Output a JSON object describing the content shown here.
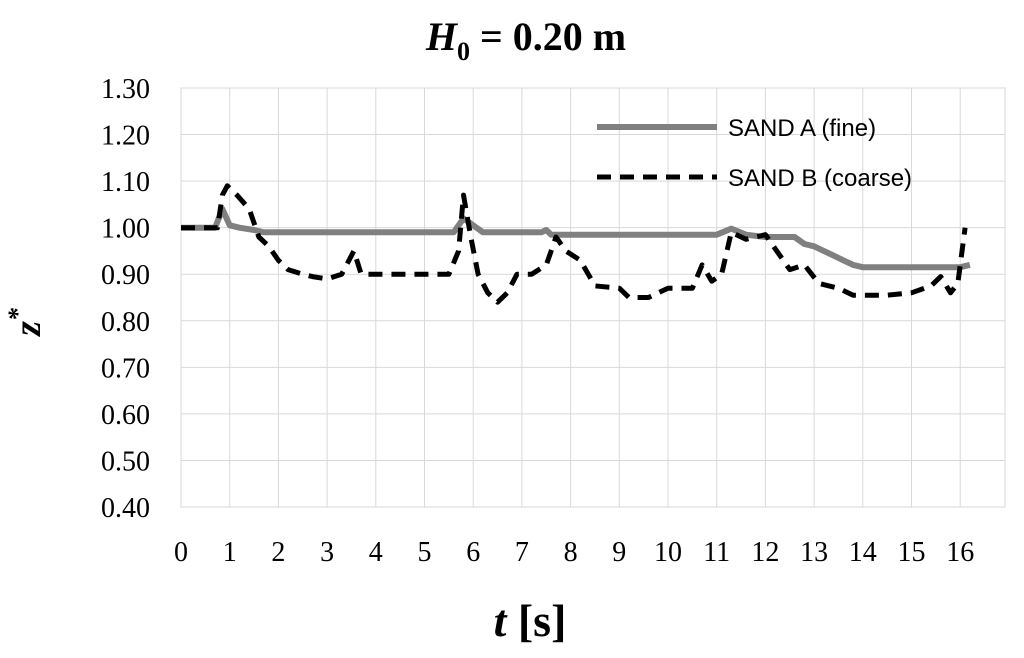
{
  "chart_data": {
    "type": "line",
    "title": {
      "main": "H",
      "sub": "0",
      "rest": " = 0.20 m"
    },
    "xlabel": {
      "symbol": "t",
      "unit": " [s]"
    },
    "ylabel": {
      "symbol": "z",
      "sup": "*"
    },
    "xlim": [
      0,
      16.5
    ],
    "ylim": [
      0.4,
      1.3
    ],
    "xticks": [
      "0",
      "1",
      "2",
      "3",
      "4",
      "5",
      "6",
      "7",
      "8",
      "9",
      "10",
      "11",
      "12",
      "13",
      "14",
      "15",
      "16"
    ],
    "yticks": [
      "0.40",
      "0.50",
      "0.60",
      "0.70",
      "0.80",
      "0.90",
      "1.00",
      "1.10",
      "1.20",
      "1.30"
    ],
    "grid": true,
    "legend_position": "top-right",
    "series": [
      {
        "name": "SAND A (fine)",
        "color": "#808080",
        "style": "solid",
        "points": [
          [
            0,
            1.0
          ],
          [
            0.7,
            1.0
          ],
          [
            0.85,
            1.04
          ],
          [
            1.0,
            1.005
          ],
          [
            1.2,
            1.0
          ],
          [
            1.5,
            0.995
          ],
          [
            1.7,
            0.99
          ],
          [
            2,
            0.99
          ],
          [
            3,
            0.99
          ],
          [
            4,
            0.99
          ],
          [
            5,
            0.99
          ],
          [
            5.6,
            0.99
          ],
          [
            5.8,
            1.02
          ],
          [
            6.0,
            1.005
          ],
          [
            6.2,
            0.99
          ],
          [
            6.5,
            0.99
          ],
          [
            7,
            0.99
          ],
          [
            7.4,
            0.99
          ],
          [
            7.5,
            0.995
          ],
          [
            7.6,
            0.985
          ],
          [
            8,
            0.985
          ],
          [
            9,
            0.985
          ],
          [
            10,
            0.985
          ],
          [
            11,
            0.985
          ],
          [
            11.3,
            0.998
          ],
          [
            11.6,
            0.985
          ],
          [
            12,
            0.98
          ],
          [
            12.6,
            0.98
          ],
          [
            12.8,
            0.965
          ],
          [
            13.0,
            0.96
          ],
          [
            13.2,
            0.95
          ],
          [
            13.4,
            0.94
          ],
          [
            13.6,
            0.93
          ],
          [
            13.8,
            0.92
          ],
          [
            14.0,
            0.915
          ],
          [
            15,
            0.915
          ],
          [
            16,
            0.915
          ],
          [
            16.2,
            0.92
          ]
        ]
      },
      {
        "name": "SAND B (coarse)",
        "color": "#000000",
        "style": "dashed",
        "points": [
          [
            0,
            1.0
          ],
          [
            0.75,
            1.0
          ],
          [
            0.85,
            1.07
          ],
          [
            0.95,
            1.09
          ],
          [
            1.15,
            1.07
          ],
          [
            1.4,
            1.04
          ],
          [
            1.6,
            0.98
          ],
          [
            1.8,
            0.96
          ],
          [
            2.0,
            0.93
          ],
          [
            2.2,
            0.91
          ],
          [
            2.5,
            0.9
          ],
          [
            2.7,
            0.895
          ],
          [
            3.0,
            0.89
          ],
          [
            3.3,
            0.9
          ],
          [
            3.55,
            0.95
          ],
          [
            3.7,
            0.9
          ],
          [
            4.0,
            0.9
          ],
          [
            5.0,
            0.9
          ],
          [
            5.5,
            0.9
          ],
          [
            5.7,
            0.95
          ],
          [
            5.8,
            1.07
          ],
          [
            5.95,
            0.98
          ],
          [
            6.1,
            0.9
          ],
          [
            6.3,
            0.86
          ],
          [
            6.5,
            0.84
          ],
          [
            6.7,
            0.86
          ],
          [
            6.9,
            0.9
          ],
          [
            7.2,
            0.9
          ],
          [
            7.5,
            0.92
          ],
          [
            7.7,
            0.98
          ],
          [
            7.9,
            0.95
          ],
          [
            8.2,
            0.93
          ],
          [
            8.5,
            0.875
          ],
          [
            9.0,
            0.87
          ],
          [
            9.2,
            0.85
          ],
          [
            9.6,
            0.85
          ],
          [
            10,
            0.87
          ],
          [
            10.5,
            0.87
          ],
          [
            10.7,
            0.92
          ],
          [
            10.9,
            0.885
          ],
          [
            11.1,
            0.9
          ],
          [
            11.3,
            0.99
          ],
          [
            11.6,
            0.975
          ],
          [
            12.0,
            0.985
          ],
          [
            12.3,
            0.94
          ],
          [
            12.5,
            0.91
          ],
          [
            12.8,
            0.92
          ],
          [
            13.1,
            0.88
          ],
          [
            13.5,
            0.87
          ],
          [
            13.8,
            0.855
          ],
          [
            14.5,
            0.855
          ],
          [
            15.0,
            0.86
          ],
          [
            15.4,
            0.875
          ],
          [
            15.6,
            0.895
          ],
          [
            15.8,
            0.86
          ],
          [
            15.95,
            0.88
          ],
          [
            16.1,
            1.0
          ]
        ]
      }
    ]
  }
}
